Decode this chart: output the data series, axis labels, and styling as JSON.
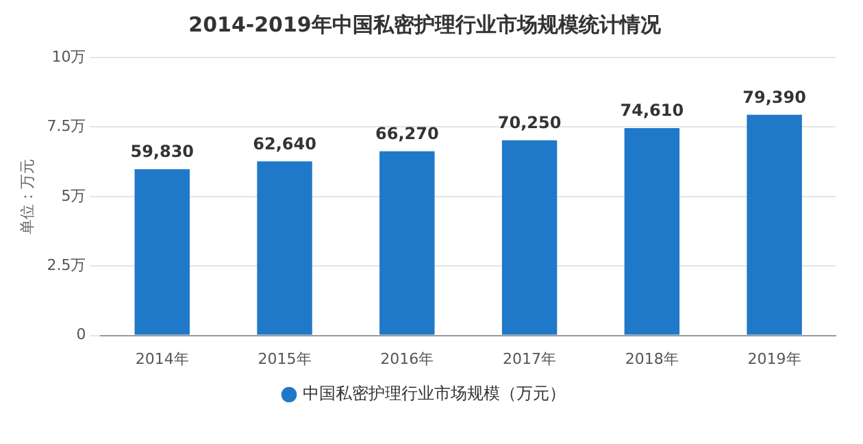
{
  "chart_data": {
    "type": "bar",
    "title": "2014-2019年中国私密护理行业市场规模统计情况",
    "ylabel": "单位：万元",
    "categories": [
      "2014年",
      "2015年",
      "2016年",
      "2017年",
      "2018年",
      "2019年"
    ],
    "series": [
      {
        "name": "中国私密护理行业市场规模（万元）",
        "color": "#1f78c8",
        "values": [
          5.983,
          6.264,
          6.627,
          7.025,
          7.461,
          7.939
        ]
      }
    ],
    "value_labels": [
      "59,830",
      "62,640",
      "66,270",
      "70,250",
      "74,610",
      "79,390"
    ],
    "ylim": [
      0,
      10
    ],
    "yticks": [
      0,
      {
        "value": 2.5,
        "label": "2.5万"
      },
      {
        "value": 5,
        "label": "5万"
      },
      {
        "value": 7.5,
        "label": "7.5万"
      },
      {
        "value": 10,
        "label": "10万"
      }
    ],
    "grid": "y",
    "legend": "bottom"
  }
}
